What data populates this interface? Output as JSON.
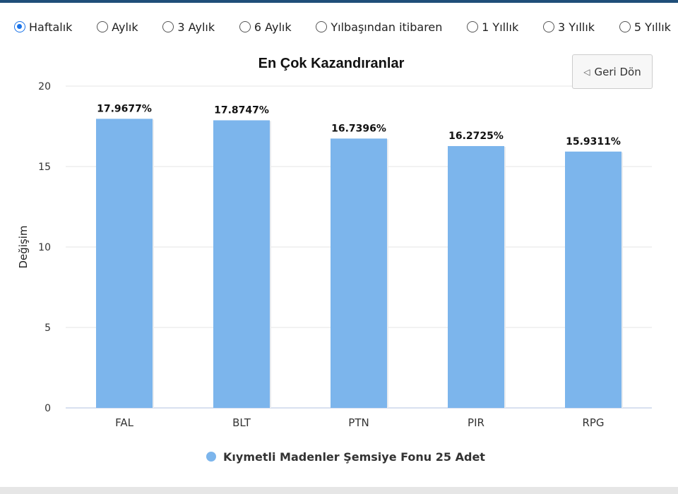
{
  "period_options": [
    {
      "label": "Haftalık",
      "checked": true
    },
    {
      "label": "Aylık",
      "checked": false
    },
    {
      "label": "3 Aylık",
      "checked": false
    },
    {
      "label": "6 Aylık",
      "checked": false
    },
    {
      "label": "Yılbaşından itibaren",
      "checked": false
    },
    {
      "label": "1 Yıllık",
      "checked": false
    },
    {
      "label": "3 Yıllık",
      "checked": false
    },
    {
      "label": "5 Yıllık",
      "checked": false
    }
  ],
  "back_button": {
    "label": "Geri Dön",
    "icon": "triangle-left-icon"
  },
  "colors": {
    "bar": "#7cb5ec",
    "grid": "#e6e6e6",
    "axis_line": "#ccd6eb",
    "selected_radio": "#1a73e8"
  },
  "chart_data": {
    "type": "bar",
    "title": "En Çok Kazandıranlar",
    "xlabel": "",
    "ylabel": "Değişim",
    "categories": [
      "FAL",
      "BLT",
      "PTN",
      "PIR",
      "RPG"
    ],
    "series": [
      {
        "name": "Kıymetli Madenler Şemsiye Fonu 25 Adet",
        "values": [
          17.9677,
          17.8747,
          16.7396,
          16.2725,
          15.9311
        ],
        "labels": [
          "17.9677%",
          "17.8747%",
          "16.7396%",
          "16.2725%",
          "15.9311%"
        ]
      }
    ],
    "ylim": [
      0,
      20
    ],
    "yticks": [
      0,
      5,
      10,
      15,
      20
    ],
    "grid": true,
    "legend_position": "bottom"
  }
}
